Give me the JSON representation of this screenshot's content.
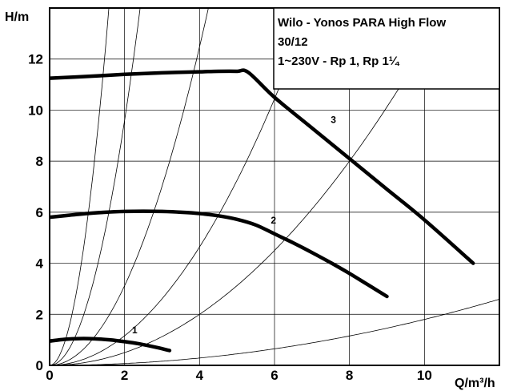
{
  "chart_data": {
    "type": "line",
    "title_lines": [
      "Wilo - Yonos PARA High Flow",
      "30/12",
      "1~230V - Rp 1, Rp 1¼"
    ],
    "xlabel": "Q/m³/h",
    "ylabel": "H/m",
    "xlim": [
      0,
      12
    ],
    "ylim": [
      0,
      14
    ],
    "x_ticks": [
      0,
      2,
      4,
      6,
      8,
      10
    ],
    "y_ticks": [
      0,
      2,
      4,
      6,
      8,
      10,
      12
    ],
    "grid": true,
    "series": [
      {
        "name": "1",
        "x": [
          0,
          0.4,
          0.8,
          1.2,
          1.6,
          2.0,
          2.4,
          2.8,
          3.2
        ],
        "y": [
          0.95,
          1.02,
          1.05,
          1.04,
          1.0,
          0.93,
          0.84,
          0.72,
          0.58
        ]
      },
      {
        "name": "2",
        "x": [
          0,
          0.5,
          1,
          1.5,
          2,
          2.5,
          3,
          3.5,
          4,
          4.5,
          5,
          5.5,
          6,
          6.5,
          7,
          7.5,
          8,
          8.5,
          9
        ],
        "y": [
          5.8,
          5.88,
          5.95,
          6.0,
          6.03,
          6.04,
          6.03,
          6.0,
          5.95,
          5.86,
          5.72,
          5.5,
          5.15,
          4.8,
          4.42,
          4.02,
          3.6,
          3.15,
          2.7
        ]
      },
      {
        "name": "3",
        "x": [
          0,
          1,
          2,
          3,
          4,
          4.5,
          5.0,
          5.3,
          6,
          7,
          8,
          9,
          10,
          11.3
        ],
        "y": [
          11.25,
          11.32,
          11.4,
          11.46,
          11.5,
          11.52,
          11.52,
          11.48,
          10.5,
          9.3,
          8.1,
          6.9,
          5.7,
          4.0
        ]
      }
    ],
    "system_curves": [
      {
        "k": 5.6
      },
      {
        "k": 2.4
      },
      {
        "k": 0.78
      },
      {
        "k": 0.29
      },
      {
        "k": 0.125
      },
      {
        "k": 0.018
      }
    ],
    "title_box_position": "top-right"
  }
}
